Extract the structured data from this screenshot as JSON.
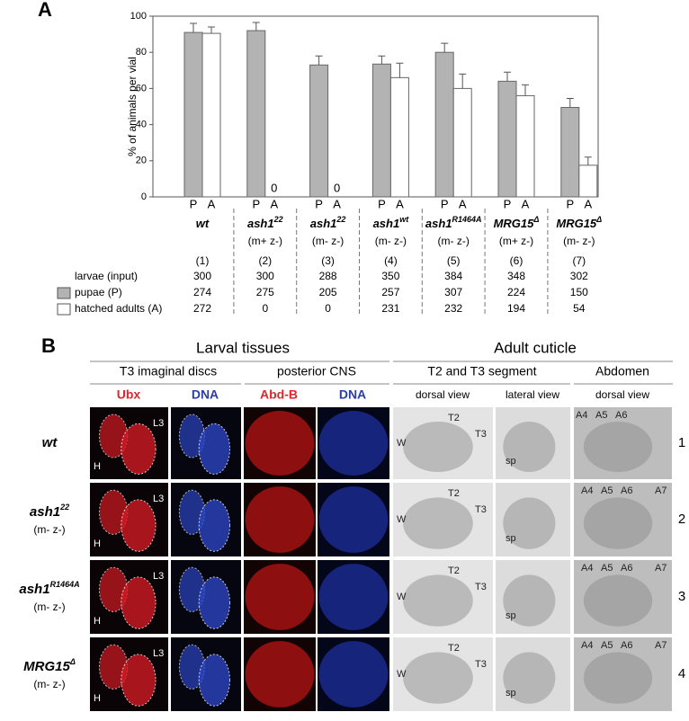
{
  "panel_a": {
    "letter": "A"
  },
  "chart_data": {
    "type": "bar",
    "ylabel": "% of animals per vial",
    "categories": [
      "(1)",
      "(2)",
      "(3)",
      "(4)",
      "(5)",
      "(6)",
      "(7)"
    ],
    "series": [
      {
        "name": "P",
        "color": "#b3b3b3",
        "values": [
          91,
          92,
          73,
          73.5,
          80,
          64,
          49.5
        ],
        "errors": [
          5,
          4.5,
          5,
          4.5,
          5,
          5,
          5
        ]
      },
      {
        "name": "A",
        "color": "#ffffff",
        "values": [
          90.5,
          0,
          0,
          66,
          60,
          56,
          17.5
        ],
        "errors": [
          3.5,
          0,
          0,
          8,
          8,
          6,
          4.5
        ]
      }
    ],
    "ylim": [
      0,
      100
    ],
    "yticks": [
      0,
      20,
      40,
      60,
      80,
      100
    ],
    "grid": false
  },
  "table": {
    "genotypes": [
      {
        "base": "wt"
      },
      {
        "base": "ash1",
        "sup": "22",
        "cond": "(m+ z-)"
      },
      {
        "base": "ash1",
        "sup": "22",
        "cond": "(m- z-)"
      },
      {
        "base": "ash1",
        "sup": "wt",
        "cond": "(m- z-)"
      },
      {
        "base": "ash1",
        "sup": "R1464A",
        "cond": "(m- z-)"
      },
      {
        "base": "MRG15",
        "sup": "Δ",
        "cond": "(m+ z-)"
      },
      {
        "base": "MRG15",
        "sup": "Δ",
        "cond": "(m- z-)"
      }
    ],
    "rows": [
      {
        "label": "larvae (input)",
        "values": [
          300,
          300,
          288,
          350,
          384,
          348,
          302
        ]
      },
      {
        "label": "pupae (P)",
        "values": [
          274,
          275,
          205,
          257,
          307,
          224,
          150
        ]
      },
      {
        "label": "hatched adults (A)",
        "values": [
          272,
          0,
          0,
          231,
          232,
          194,
          54
        ]
      }
    ]
  },
  "panel_b": {
    "letter": "B",
    "groups": [
      "Larval tissues",
      "Adult cuticle"
    ],
    "sections": [
      "T3 imaginal discs",
      "posterior CNS",
      "T2 and T3 segment",
      "Abdomen"
    ],
    "stains": [
      "Ubx",
      "DNA",
      "Abd-B",
      "DNA"
    ],
    "views": [
      "dorsal view",
      "lateral view",
      "dorsal view"
    ],
    "rows": [
      {
        "base": "wt",
        "number": "1"
      },
      {
        "base": "ash1",
        "sup": "22",
        "cond": "(m- z-)",
        "number": "2"
      },
      {
        "base": "ash1",
        "sup": "R1464A",
        "cond": "(m- z-)",
        "number": "3"
      },
      {
        "base": "MRG15",
        "sup": "Δ",
        "cond": "(m- z-)",
        "number": "4"
      }
    ],
    "tags": [
      "H",
      "L3",
      "W",
      "T2",
      "T3",
      "sp",
      "A4",
      "A5",
      "A6",
      "A7"
    ]
  }
}
